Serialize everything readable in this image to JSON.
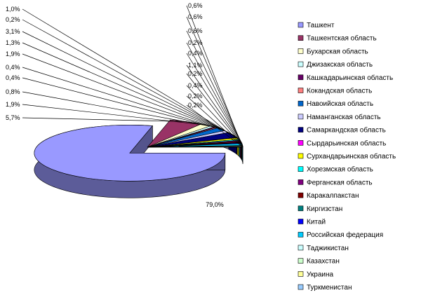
{
  "chart_data": {
    "type": "pie",
    "style": "3d-exploded",
    "title": "",
    "legend_position": "right",
    "slices": [
      {
        "name": "Ташкент",
        "value": 79.0,
        "label": "79,0%",
        "color": "#9999ff"
      },
      {
        "name": "Ташкентская область",
        "value": 5.7,
        "label": "5,7%",
        "color": "#993366"
      },
      {
        "name": "Бухарская область",
        "value": 1.9,
        "label": "1,9%",
        "color": "#ffffcc"
      },
      {
        "name": "Джизакская область",
        "value": 0.8,
        "label": "0,8%",
        "color": "#ccffff"
      },
      {
        "name": "Кашкадарьинская область",
        "value": 0.4,
        "label": "0,4%",
        "color": "#660066"
      },
      {
        "name": "Кокандская область",
        "value": 0.4,
        "label": "0,4%",
        "color": "#ff8080"
      },
      {
        "name": "Навоийская область",
        "value": 1.9,
        "label": "1,9%",
        "color": "#0066cc"
      },
      {
        "name": "Наманганская область",
        "value": 1.3,
        "label": "1,3%",
        "color": "#ccccff"
      },
      {
        "name": "Самаркандская область",
        "value": 3.1,
        "label": "3,1%",
        "color": "#000080"
      },
      {
        "name": "Сырдарьинская область",
        "value": 0.2,
        "label": "0,2%",
        "color": "#ff00ff"
      },
      {
        "name": "Сурхандарьинская область",
        "value": 1.0,
        "label": "1,0%",
        "color": "#ffff00"
      },
      {
        "name": "Хорезмская область",
        "value": 0.6,
        "label": "0,6%",
        "color": "#00ffff"
      },
      {
        "name": "Ферганская область",
        "value": 0.6,
        "label": "0,6%",
        "color": "#800080"
      },
      {
        "name": "Каракалпакстан",
        "value": 0.6,
        "label": "0,6%",
        "color": "#800000"
      },
      {
        "name": "Киргизстан",
        "value": 0.2,
        "label": "0,2%",
        "color": "#008080"
      },
      {
        "name": "Китай",
        "value": 0.4,
        "label": "0,4%",
        "color": "#0000ff"
      },
      {
        "name": "Российская федерация",
        "value": 1.1,
        "label": "1,1%",
        "color": "#00ccff"
      },
      {
        "name": "Таджикистан",
        "value": 0.2,
        "label": "0,2%",
        "color": "#ccffff"
      },
      {
        "name": "Казахстан",
        "value": 0.4,
        "label": "0,4%",
        "color": "#ccffcc"
      },
      {
        "name": "Украина",
        "value": 0.2,
        "label": "0,2%",
        "color": "#ffff99"
      },
      {
        "name": "Туркменистан",
        "value": 0.2,
        "label": "0,2%",
        "color": "#99ccff"
      }
    ]
  }
}
